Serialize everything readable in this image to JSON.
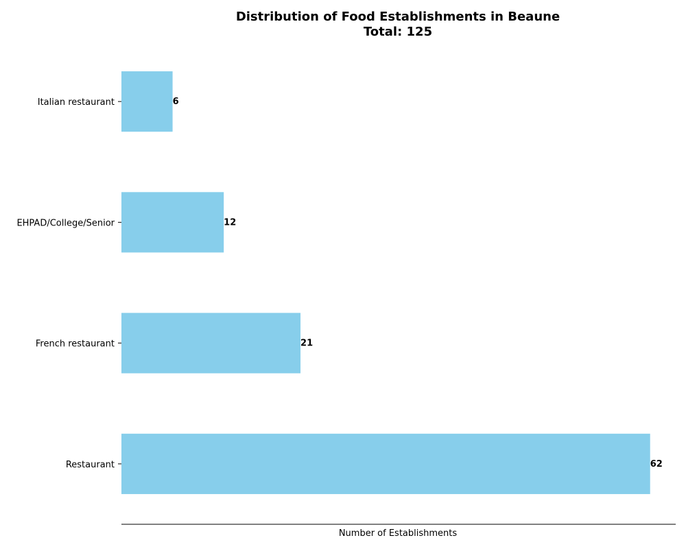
{
  "chart_data": {
    "type": "bar",
    "orientation": "horizontal",
    "title": "Distribution of Food Establishments in Beaune",
    "subtitle": "Total: 125",
    "categories": [
      "Restaurant",
      "French restaurant",
      "EHPAD/College/Senior",
      "Italian restaurant"
    ],
    "values": [
      62,
      21,
      12,
      6
    ],
    "xlabel": "Number of Establishments",
    "ylabel": "",
    "xlim": [
      0,
      65
    ],
    "grid": false,
    "legend": "none",
    "bar_color": "#87CEEB"
  }
}
